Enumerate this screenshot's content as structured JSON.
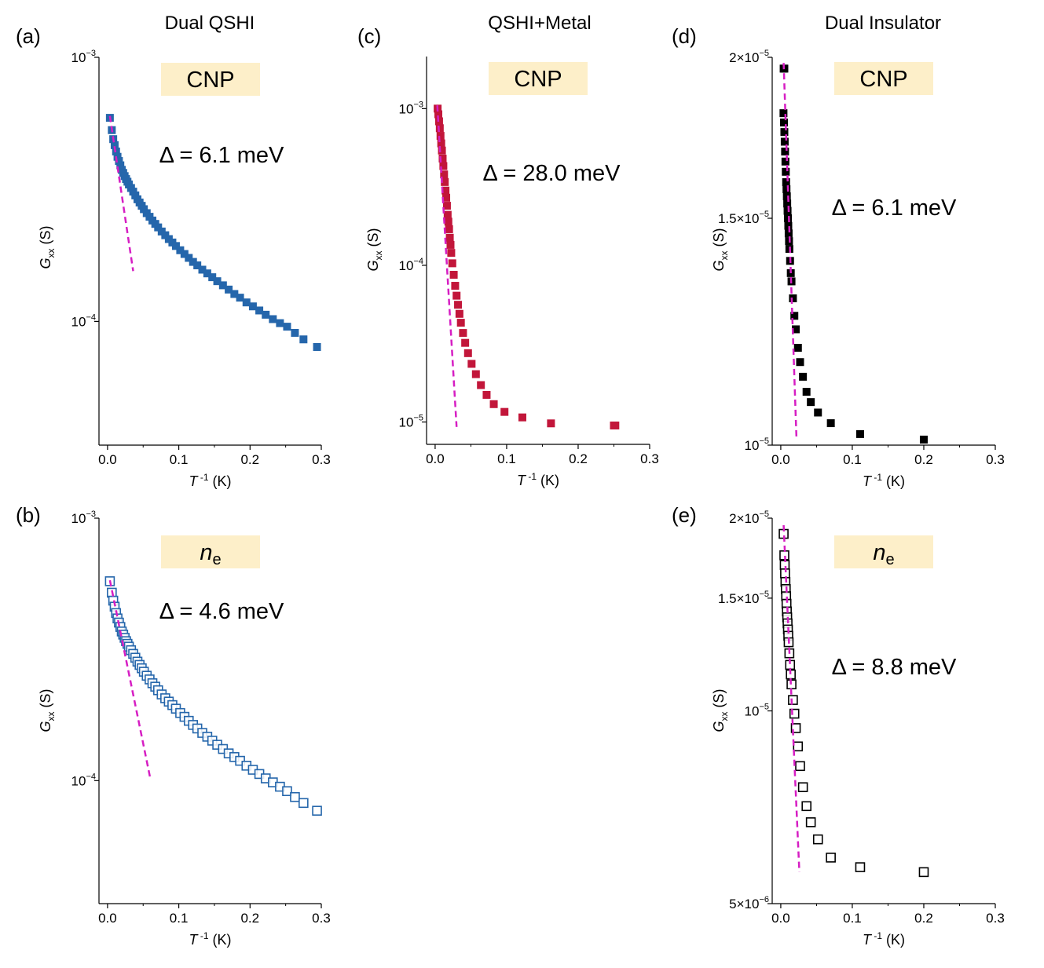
{
  "column_titles": [
    {
      "text": "Dual QSHI",
      "color": "#2566ab"
    },
    {
      "text": "QSHI+Metal",
      "color": "#c2163a"
    },
    {
      "text": "Dual Insulator",
      "color": "#000000"
    }
  ],
  "colors": {
    "blue": "#2566ab",
    "red": "#c2163a",
    "black": "#000000",
    "fit": "#d61ec3",
    "badge": "#fdefc9"
  },
  "chart_data": [
    {
      "panel": "(a)",
      "type": "scatter",
      "marker": "filled-square",
      "color": "#2566ab",
      "badge": "CNP",
      "badge_italic": false,
      "delta": "Δ = 6.1 meV",
      "xlabel": "T⁻¹ (K)",
      "ylabel": "Gxx (S)",
      "xlim": [
        -0.012,
        0.3
      ],
      "xticks": [
        "0.0",
        "0.1",
        "0.2",
        "0.3"
      ],
      "yscale": "log",
      "ylim": [
        3.4e-05,
        0.001
      ],
      "yticks": [
        {
          "m": "10",
          "e": "−3",
          "v": 0.001
        },
        {
          "m": "10",
          "e": "−4",
          "v": 0.0001
        }
      ],
      "x": [
        0.0033,
        0.006,
        0.008,
        0.01,
        0.012,
        0.014,
        0.016,
        0.018,
        0.02,
        0.022,
        0.024,
        0.026,
        0.028,
        0.03,
        0.033,
        0.036,
        0.039,
        0.042,
        0.045,
        0.048,
        0.051,
        0.055,
        0.059,
        0.063,
        0.067,
        0.071,
        0.076,
        0.081,
        0.086,
        0.091,
        0.096,
        0.102,
        0.108,
        0.114,
        0.12,
        0.126,
        0.133,
        0.14,
        0.147,
        0.154,
        0.162,
        0.17,
        0.178,
        0.186,
        0.195,
        0.204,
        0.213,
        0.222,
        0.232,
        0.242,
        0.252,
        0.263,
        0.275,
        0.294
      ],
      "y": [
        0.00059,
        0.00053,
        0.00049,
        0.000465,
        0.00044,
        0.00042,
        0.000405,
        0.00039,
        0.000375,
        0.000365,
        0.000355,
        0.000346,
        0.000338,
        0.00033,
        0.00032,
        0.00031,
        0.0003,
        0.00029,
        0.000282,
        0.000274,
        0.000266,
        0.000257,
        0.000249,
        0.000241,
        0.000234,
        0.000227,
        0.000219,
        0.000212,
        0.000205,
        0.000199,
        0.000193,
        0.000186,
        0.00018,
        0.000174,
        0.000168,
        0.000163,
        0.000157,
        0.000152,
        0.000147,
        0.000142,
        0.000137,
        0.000132,
        0.000127,
        0.000123,
        0.000118,
        0.000114,
        0.00011,
        0.000106,
        0.000102,
        9.85e-05,
        9.55e-05,
        9.05e-05,
        8.55e-05,
        8e-05
      ],
      "fit": {
        "x": [
          0.0033,
          0.036
        ],
        "y": [
          0.0006,
          0.000155
        ]
      }
    },
    {
      "panel": "(b)",
      "type": "scatter",
      "marker": "open-square",
      "color": "#2566ab",
      "badge": "n",
      "badge_sub": "e",
      "badge_italic": true,
      "delta": "Δ = 4.6 meV",
      "xlabel": "T⁻¹ (K)",
      "ylabel": "Gxx (S)",
      "xlim": [
        -0.012,
        0.3
      ],
      "xticks": [
        "0.0",
        "0.1",
        "0.2",
        "0.3"
      ],
      "yscale": "log",
      "ylim": [
        3.4e-05,
        0.001
      ],
      "yticks": [
        {
          "m": "10",
          "e": "−3",
          "v": 0.001
        },
        {
          "m": "10",
          "e": "−4",
          "v": 0.0001
        }
      ],
      "x": [
        0.0033,
        0.006,
        0.008,
        0.01,
        0.012,
        0.014,
        0.016,
        0.018,
        0.02,
        0.022,
        0.024,
        0.026,
        0.028,
        0.03,
        0.033,
        0.036,
        0.039,
        0.042,
        0.045,
        0.048,
        0.051,
        0.055,
        0.059,
        0.063,
        0.067,
        0.071,
        0.076,
        0.081,
        0.086,
        0.091,
        0.096,
        0.102,
        0.108,
        0.114,
        0.12,
        0.126,
        0.133,
        0.14,
        0.147,
        0.154,
        0.162,
        0.17,
        0.178,
        0.186,
        0.195,
        0.204,
        0.213,
        0.222,
        0.232,
        0.242,
        0.252,
        0.263,
        0.275,
        0.294
      ],
      "y": [
        0.000575,
        0.00052,
        0.000485,
        0.00046,
        0.000435,
        0.000415,
        0.0004,
        0.000385,
        0.00037,
        0.00036,
        0.00035,
        0.00034,
        0.000332,
        0.000324,
        0.000314,
        0.000304,
        0.000294,
        0.000284,
        0.000276,
        0.000268,
        0.00026,
        0.000251,
        0.000243,
        0.000235,
        0.000228,
        0.000221,
        0.000213,
        0.000206,
        0.0002,
        0.000194,
        0.000188,
        0.000181,
        0.000175,
        0.000169,
        0.000163,
        0.000158,
        0.000152,
        0.000147,
        0.000142,
        0.000137,
        0.000132,
        0.000127,
        0.000123,
        0.000119,
        0.000114,
        0.00011,
        0.000106,
        0.000102,
        9.85e-05,
        9.48e-05,
        9.12e-05,
        8.66e-05,
        8.22e-05,
        7.68e-05
      ],
      "fit": {
        "x": [
          0.0033,
          0.06
        ],
        "y": [
          0.00058,
          0.000102
        ]
      }
    },
    {
      "panel": "(c)",
      "type": "scatter",
      "marker": "filled-square",
      "color": "#c2163a",
      "badge": "CNP",
      "badge_italic": false,
      "delta": "Δ = 28.0 meV",
      "xlabel": "T⁻¹ (K)",
      "ylabel": "Gxx (S)",
      "xlim": [
        -0.012,
        0.3
      ],
      "xticks": [
        "0.0",
        "0.1",
        "0.2",
        "0.3"
      ],
      "yscale": "log",
      "ylim": [
        7.2e-06,
        0.00215
      ],
      "yticks": [
        {
          "m": "10",
          "e": "−3",
          "v": 0.001
        },
        {
          "m": "10",
          "e": "−4",
          "v": 0.0001
        },
        {
          "m": "10",
          "e": "−5",
          "v": 1e-05
        }
      ],
      "x": [
        0.0035,
        0.0045,
        0.0055,
        0.0065,
        0.0075,
        0.0085,
        0.0095,
        0.0105,
        0.0115,
        0.0125,
        0.0135,
        0.0145,
        0.0155,
        0.0165,
        0.0175,
        0.0185,
        0.0195,
        0.0205,
        0.0215,
        0.0225,
        0.024,
        0.026,
        0.028,
        0.03,
        0.032,
        0.034,
        0.036,
        0.039,
        0.042,
        0.046,
        0.051,
        0.057,
        0.064,
        0.072,
        0.082,
        0.097,
        0.122,
        0.162,
        0.25,
        0.252
      ],
      "y": [
        0.001,
        0.00092,
        0.00083,
        0.00075,
        0.00067,
        0.0006,
        0.00054,
        0.00048,
        0.00043,
        0.00038,
        0.00034,
        0.0003,
        0.00027,
        0.00024,
        0.00021,
        0.00019,
        0.00017,
        0.00015,
        0.000135,
        0.00012,
        0.000103,
        8.7e-05,
        7.4e-05,
        6.4e-05,
        5.6e-05,
        4.9e-05,
        4.3e-05,
        3.7e-05,
        3.2e-05,
        2.75e-05,
        2.35e-05,
        2.02e-05,
        1.72e-05,
        1.49e-05,
        1.3e-05,
        1.16e-05,
        1.07e-05,
        9.8e-06,
        9.5e-06,
        9.5e-06
      ],
      "fit": {
        "x": [
          0.003,
          0.03
        ],
        "y": [
          0.00105,
          9.3e-06
        ]
      }
    },
    {
      "panel": "(d)",
      "type": "scatter",
      "marker": "filled-square",
      "color": "#000000",
      "badge": "CNP",
      "badge_italic": false,
      "delta": "Δ = 6.1 meV",
      "xlabel": "T⁻¹ (K)",
      "ylabel": "Gxx (S)",
      "xlim": [
        -0.012,
        0.3
      ],
      "xticks": [
        "0.0",
        "0.1",
        "0.2",
        "0.3"
      ],
      "yscale": "log",
      "ylim": [
        1e-05,
        2e-05
      ],
      "yticks": [
        {
          "m": "2×10",
          "e": "−5",
          "v": 2e-05
        },
        {
          "m": "1.5×10",
          "e": "−5",
          "v": 1.5e-05
        },
        {
          "m": "10",
          "e": "−5",
          "v": 1e-05
        }
      ],
      "x": [
        0.004,
        0.005,
        0.0038,
        0.0045,
        0.005,
        0.0055,
        0.006,
        0.0065,
        0.007,
        0.0075,
        0.008,
        0.0085,
        0.009,
        0.0095,
        0.01,
        0.0105,
        0.011,
        0.0115,
        0.012,
        0.013,
        0.014,
        0.015,
        0.017,
        0.019,
        0.021,
        0.024,
        0.027,
        0.031,
        0.036,
        0.042,
        0.052,
        0.07,
        0.111,
        0.2
      ],
      "y": [
        1.96e-05,
        1.96e-05,
        1.81e-05,
        1.78e-05,
        1.75e-05,
        1.72e-05,
        1.69e-05,
        1.66e-05,
        1.63e-05,
        1.6e-05,
        1.58e-05,
        1.56e-05,
        1.54e-05,
        1.52e-05,
        1.5e-05,
        1.48e-05,
        1.46e-05,
        1.44e-05,
        1.42e-05,
        1.39e-05,
        1.36e-05,
        1.34e-05,
        1.3e-05,
        1.26e-05,
        1.23e-05,
        1.19e-05,
        1.16e-05,
        1.13e-05,
        1.1e-05,
        1.08e-05,
        1.06e-05,
        1.04e-05,
        1.02e-05,
        1.01e-05
      ],
      "fit": {
        "x": [
          0.004,
          0.022
        ],
        "y": [
          1.98e-05,
          1.01e-05
        ]
      }
    },
    {
      "panel": "(e)",
      "type": "scatter",
      "marker": "open-square",
      "color": "#000000",
      "badge": "n",
      "badge_sub": "e",
      "badge_italic": true,
      "delta": "Δ = 8.8 meV",
      "xlabel": "T⁻¹ (K)",
      "ylabel": "Gxx (S)",
      "xlim": [
        -0.012,
        0.3
      ],
      "xticks": [
        "0.0",
        "0.1",
        "0.2",
        "0.3"
      ],
      "yscale": "log",
      "ylim": [
        5e-06,
        2e-05
      ],
      "yticks": [
        {
          "m": "2×10",
          "e": "−5",
          "v": 2e-05
        },
        {
          "m": "1.5×10",
          "e": "−5",
          "v": 1.5e-05
        },
        {
          "m": "10",
          "e": "−5",
          "v": 1e-05
        },
        {
          "m": "5×10",
          "e": "−6",
          "v": 5e-06
        }
      ],
      "x": [
        0.004,
        0.005,
        0.0055,
        0.006,
        0.0065,
        0.007,
        0.0075,
        0.008,
        0.0085,
        0.009,
        0.0095,
        0.01,
        0.0105,
        0.011,
        0.012,
        0.013,
        0.014,
        0.015,
        0.017,
        0.019,
        0.021,
        0.024,
        0.027,
        0.031,
        0.036,
        0.042,
        0.052,
        0.07,
        0.111,
        0.2
      ],
      "y": [
        1.89e-05,
        1.75e-05,
        1.69e-05,
        1.64e-05,
        1.59e-05,
        1.55e-05,
        1.51e-05,
        1.47e-05,
        1.43e-05,
        1.4e-05,
        1.37e-05,
        1.34e-05,
        1.31e-05,
        1.28e-05,
        1.23e-05,
        1.18e-05,
        1.14e-05,
        1.1e-05,
        1.04e-05,
        9.9e-06,
        9.4e-06,
        8.8e-06,
        8.2e-06,
        7.6e-06,
        7.1e-06,
        6.7e-06,
        6.3e-06,
        5.9e-06,
        5.7e-06,
        5.6e-06
      ],
      "fit": {
        "x": [
          0.004,
          0.026
        ],
        "y": [
          1.95e-05,
          5.6e-06
        ]
      }
    }
  ]
}
